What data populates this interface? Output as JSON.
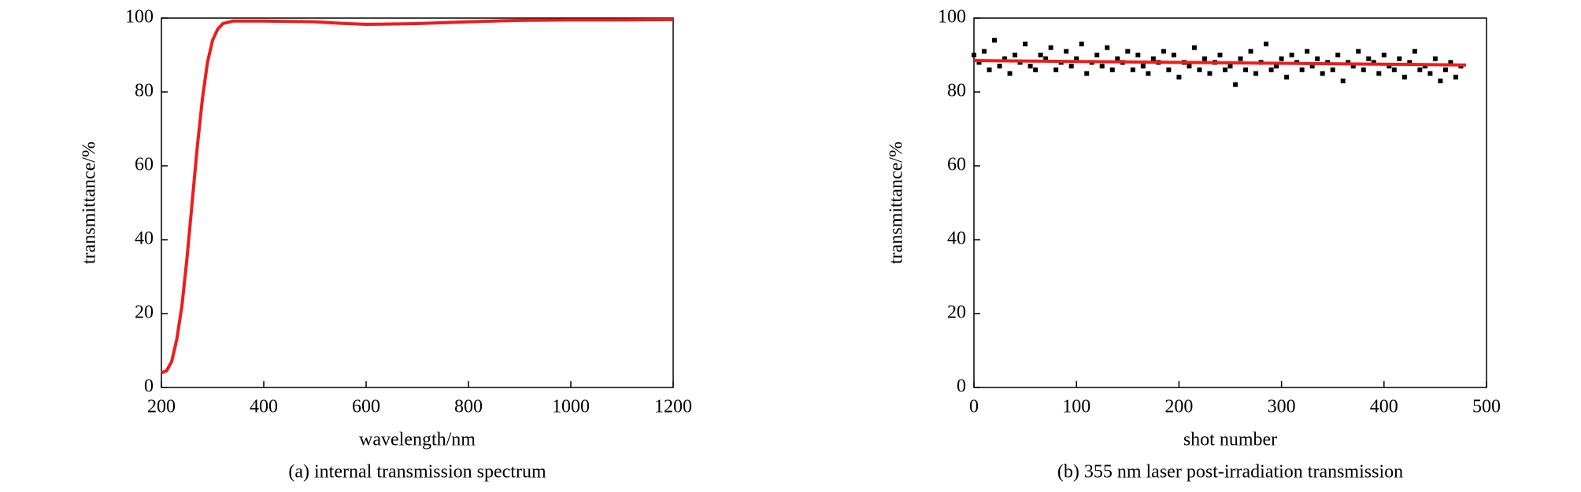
{
  "chart_data": [
    {
      "type": "line",
      "xlabel": "wavelength/nm",
      "ylabel": "transmittance/%",
      "caption": "(a) internal transmission spectrum",
      "xlim": [
        200,
        1200
      ],
      "xticks": [
        200,
        400,
        600,
        800,
        1000,
        1200
      ],
      "ylim": [
        0,
        100
      ],
      "yticks": [
        0,
        20,
        40,
        60,
        80,
        100
      ],
      "series": [
        {
          "color": "#ee1c1c",
          "x": [
            200,
            210,
            220,
            230,
            240,
            250,
            260,
            270,
            280,
            290,
            300,
            310,
            320,
            340,
            400,
            500,
            550,
            600,
            700,
            800,
            900,
            1000,
            1100,
            1200
          ],
          "values": [
            4,
            4.5,
            7,
            13,
            22,
            35,
            50,
            65,
            78,
            88,
            94,
            97,
            98.5,
            99.2,
            99.2,
            99,
            98.6,
            98.3,
            98.5,
            99,
            99.4,
            99.5,
            99.5,
            99.6
          ]
        }
      ]
    },
    {
      "type": "scatter",
      "xlabel": "shot number",
      "ylabel": "transmittance/%",
      "caption": "(b) 355 nm laser post-irradiation transmission",
      "xlim": [
        0,
        500
      ],
      "xticks": [
        0,
        100,
        200,
        300,
        400,
        500
      ],
      "ylim": [
        0,
        100
      ],
      "yticks": [
        0,
        20,
        40,
        60,
        80,
        100
      ],
      "series": [
        {
          "color": "#000000",
          "x": [
            0,
            5,
            10,
            15,
            20,
            25,
            30,
            35,
            40,
            45,
            50,
            55,
            60,
            65,
            70,
            75,
            80,
            85,
            90,
            95,
            100,
            105,
            110,
            115,
            120,
            125,
            130,
            135,
            140,
            145,
            150,
            155,
            160,
            165,
            170,
            175,
            180,
            185,
            190,
            195,
            200,
            205,
            210,
            215,
            220,
            225,
            230,
            235,
            240,
            245,
            250,
            255,
            260,
            265,
            270,
            275,
            280,
            285,
            290,
            295,
            300,
            305,
            310,
            315,
            320,
            325,
            330,
            335,
            340,
            345,
            350,
            355,
            360,
            365,
            370,
            375,
            380,
            385,
            390,
            395,
            400,
            405,
            410,
            415,
            420,
            425,
            430,
            435,
            440,
            445,
            450,
            455,
            460,
            465,
            470,
            475
          ],
          "values": [
            90,
            88,
            91,
            86,
            94,
            87,
            89,
            85,
            90,
            88,
            93,
            87,
            86,
            90,
            89,
            92,
            86,
            88,
            91,
            87,
            89,
            93,
            85,
            88,
            90,
            87,
            92,
            86,
            89,
            88,
            91,
            86,
            90,
            87,
            85,
            89,
            88,
            91,
            86,
            90,
            84,
            88,
            87,
            92,
            86,
            89,
            85,
            88,
            90,
            86,
            87,
            82,
            89,
            86,
            91,
            85,
            88,
            93,
            86,
            87,
            89,
            84,
            90,
            88,
            86,
            91,
            87,
            89,
            85,
            88,
            86,
            90,
            83,
            88,
            87,
            91,
            86,
            89,
            88,
            85,
            90,
            87,
            86,
            89,
            84,
            88,
            91,
            86,
            87,
            85,
            89,
            83,
            86,
            88,
            84,
            87
          ]
        },
        {
          "type": "line",
          "color": "#ee1c1c",
          "x": [
            0,
            480
          ],
          "values": [
            88.5,
            87.3
          ]
        }
      ]
    }
  ]
}
